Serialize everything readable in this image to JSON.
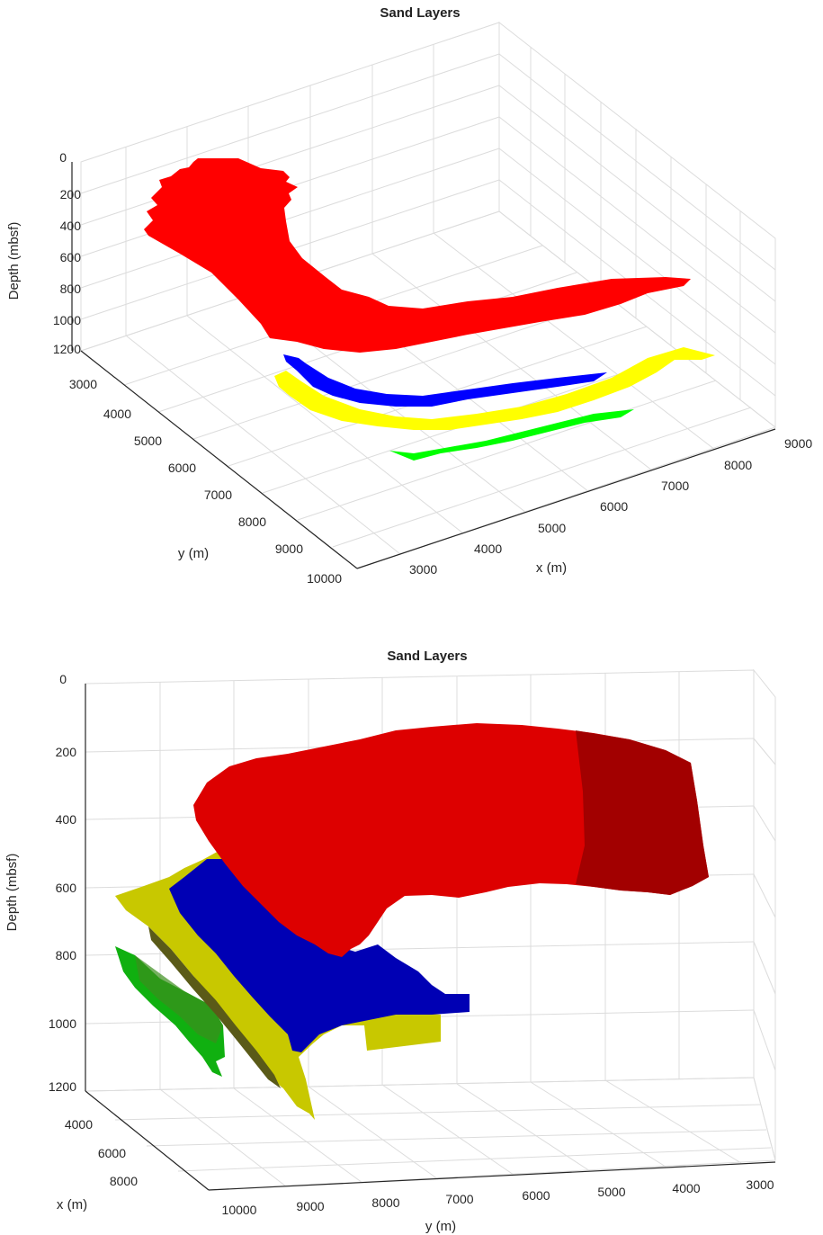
{
  "chart_data": [
    {
      "type": "surface3d",
      "title": "Sand Layers",
      "xlabel": "x (m)",
      "ylabel": "y (m)",
      "zlabel": "Depth (mbsf)",
      "z_ticks": [
        "0",
        "200",
        "400",
        "600",
        "800",
        "1000",
        "1200"
      ],
      "y_ticks": [
        "3000",
        "4000",
        "5000",
        "6000",
        "7000",
        "8000",
        "9000",
        "10000"
      ],
      "x_ticks": [
        "3000",
        "4000",
        "5000",
        "6000",
        "7000",
        "8000",
        "9000"
      ],
      "series": [
        {
          "color": "#ff0000",
          "depth": 200
        },
        {
          "color": "#0000ff",
          "depth": 700
        },
        {
          "color": "#ffff00",
          "depth": 800
        },
        {
          "color": "#00ff00",
          "depth": 1100
        }
      ]
    },
    {
      "type": "surface3d",
      "title": "Sand Layers",
      "xlabel": "x (m)",
      "ylabel": "y (m)",
      "zlabel": "Depth (mbsf)",
      "z_ticks": [
        "0",
        "200",
        "400",
        "600",
        "800",
        "1000",
        "1200"
      ],
      "x_ticks": [
        "4000",
        "6000",
        "8000"
      ],
      "y_ticks": [
        "10000",
        "9000",
        "8000",
        "7000",
        "6000",
        "5000",
        "4000",
        "3000"
      ],
      "series": [
        {
          "color": "#dd0000",
          "depth": 200
        },
        {
          "color": "#0000b4",
          "depth": 700
        },
        {
          "color": "#c8c800",
          "depth": 800
        },
        {
          "color": "#10b010",
          "depth": 1100
        }
      ]
    }
  ]
}
